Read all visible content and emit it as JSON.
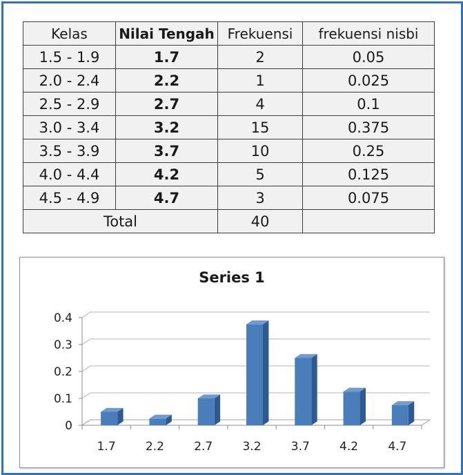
{
  "table": {
    "headers": [
      "Kelas",
      "Nilai Tengah",
      "Frekuensi",
      "frekuensi nisbi"
    ],
    "rows": [
      [
        "1.5 - 1.9",
        "1.7",
        "2",
        "0.05"
      ],
      [
        "2.0 - 2.4",
        "2.2",
        "1",
        "0.025"
      ],
      [
        "2.5 - 2.9",
        "2.7",
        "4",
        "0.1"
      ],
      [
        "3.0 - 3.4",
        "3.2",
        "15",
        "0.375"
      ],
      [
        "3.5 - 3.9",
        "3.7",
        "10",
        "0.25"
      ],
      [
        "4.0 - 4.4",
        "4.2",
        "5",
        "0.125"
      ],
      [
        "4.5 - 4.9",
        "4.7",
        "3",
        "0.075"
      ]
    ],
    "total_label": "Total",
    "total_value": "40"
  },
  "chart_data": {
    "type": "bar",
    "title": "Series 1",
    "categories": [
      "1.7",
      "2.2",
      "2.7",
      "3.2",
      "3.7",
      "4.2",
      "4.7"
    ],
    "series": [
      {
        "values": [
          0.05,
          0.025,
          0.1,
          0.375,
          0.25,
          0.125,
          0.075
        ]
      }
    ],
    "xlabel": "",
    "ylabel": "",
    "ylim": [
      0,
      0.4
    ],
    "yticks": [
      "0",
      "0.1",
      "0.2",
      "0.3",
      "0.4"
    ],
    "grid": true,
    "legend": "none",
    "bar_color": "#4a7ebb"
  }
}
